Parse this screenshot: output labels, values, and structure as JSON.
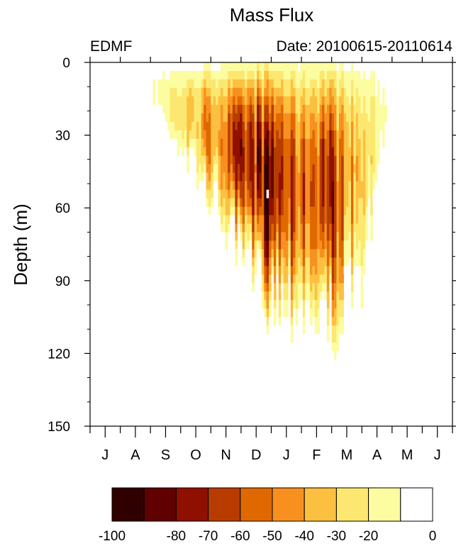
{
  "chart_data": {
    "type": "heatmap",
    "title": "Mass Flux",
    "left_label": "EDMF",
    "right_label": "Date: 20100615-20110614",
    "ylabel": "Depth (m)",
    "xlabel": "",
    "ylim": [
      150,
      0
    ],
    "yticks": [
      "0",
      "30",
      "60",
      "90",
      "120",
      "150"
    ],
    "ytick_values": [
      0,
      30,
      60,
      90,
      120,
      150
    ],
    "months": [
      "J",
      "A",
      "S",
      "O",
      "N",
      "D",
      "J",
      "F",
      "M",
      "A",
      "M",
      "J"
    ],
    "colorbar": {
      "levels": [
        -100,
        -90,
        -80,
        -70,
        -60,
        -50,
        -40,
        -30,
        -20,
        -10,
        0
      ],
      "labels": [
        "-100",
        "-80",
        "-70",
        "-60",
        "-50",
        "-40",
        "-30",
        "-20",
        "0"
      ],
      "label_values": [
        -100,
        -80,
        -70,
        -60,
        -50,
        -40,
        -30,
        -20,
        0
      ],
      "colors": [
        "#300000",
        "#600000",
        "#901000",
        "#b83c00",
        "#e06800",
        "#f89020",
        "#fcc040",
        "#fce870",
        "#fcfca0",
        "#ffffff"
      ]
    },
    "series_summary": {
      "time_days": [
        0,
        30,
        60,
        90,
        120,
        150,
        180,
        210,
        240,
        270,
        300,
        330,
        365
      ],
      "mixed_layer_depth_m": [
        5,
        8,
        15,
        38,
        58,
        85,
        100,
        105,
        115,
        105,
        40,
        25,
        20
      ],
      "peak_flux": [
        0,
        0,
        -10,
        -30,
        -50,
        -70,
        -90,
        -60,
        -80,
        -40,
        -10,
        -5,
        0
      ]
    }
  }
}
